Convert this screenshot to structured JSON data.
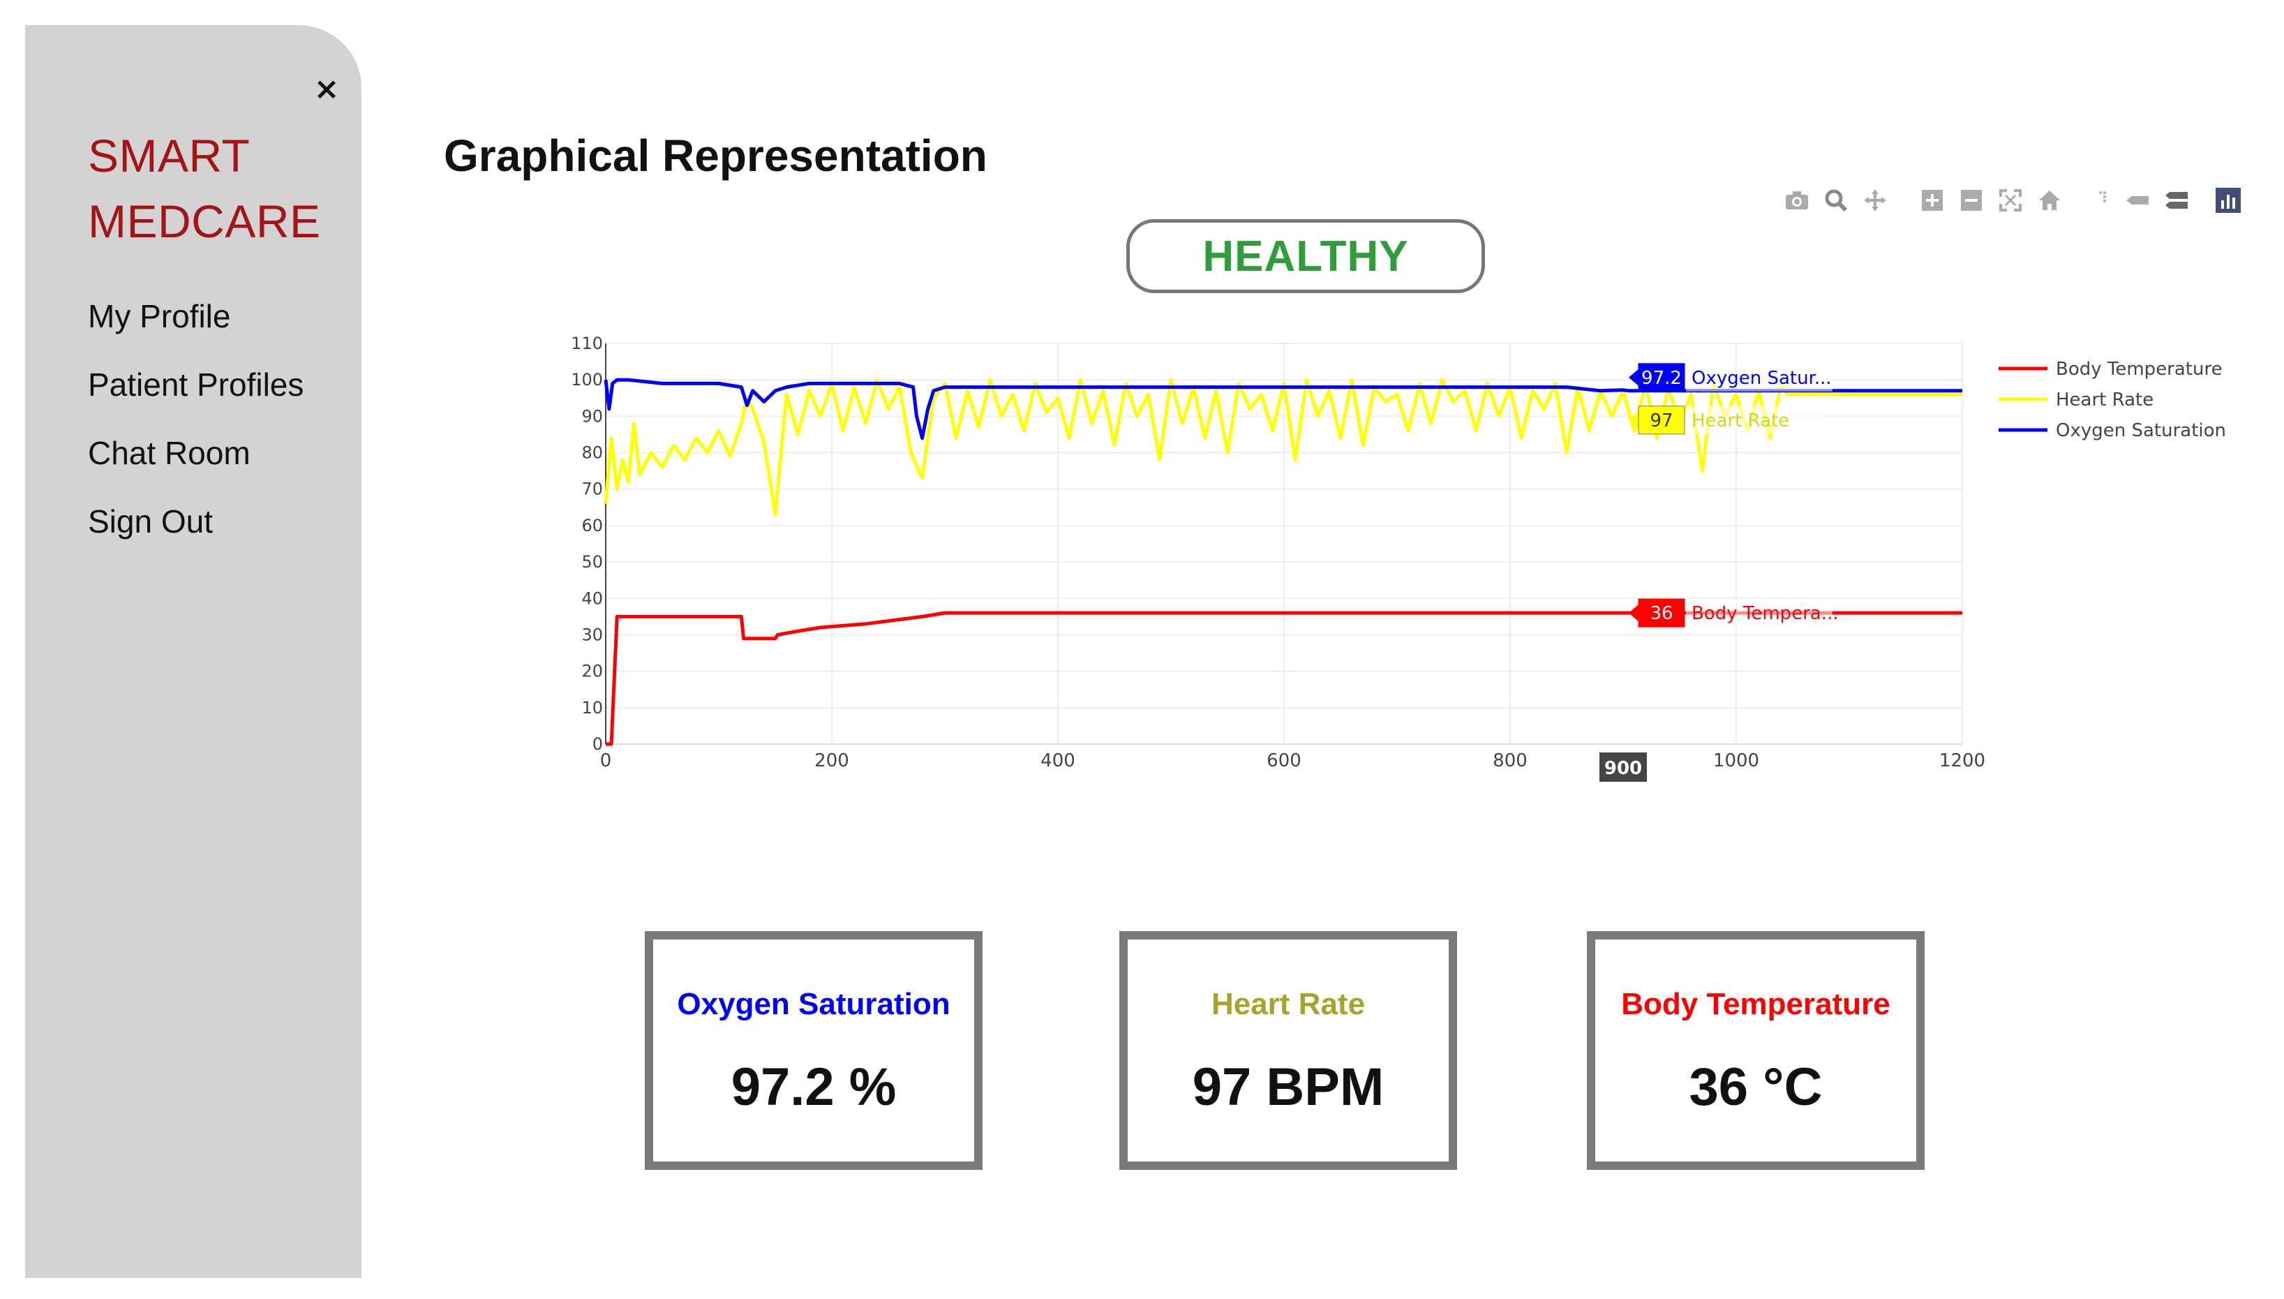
{
  "sidebar": {
    "close_label": "×",
    "brand_line1": "SMART",
    "brand_line2": "MEDCARE",
    "items": [
      {
        "label": "My Profile"
      },
      {
        "label": "Patient Profiles"
      },
      {
        "label": "Chat Room"
      },
      {
        "label": "Sign Out"
      }
    ]
  },
  "main": {
    "title": "Graphical Representation",
    "status": "HEALTHY"
  },
  "modebar": {
    "buttons": [
      "camera-icon",
      "zoom-icon",
      "pan-icon",
      "zoom-in-icon",
      "zoom-out-icon",
      "autoscale-icon",
      "reset-axes-icon",
      "spike-lines-icon",
      "hover-closest-icon",
      "hover-compare-icon",
      "plotly-logo-icon"
    ]
  },
  "colors": {
    "body_temperature": "#ff0000",
    "heart_rate": "#ffff00",
    "heart_rate_text": "#a4a52a",
    "oxygen_saturation": "#0000ff",
    "healthy": "#2e9e3a",
    "brand": "#a31515"
  },
  "chart_data": {
    "type": "line",
    "title": "",
    "xlabel": "",
    "ylabel": "",
    "xlim": [
      0,
      1200
    ],
    "ylim": [
      0,
      110
    ],
    "x_ticks": [
      "0",
      "200",
      "400",
      "600",
      "800",
      "1000",
      "1200"
    ],
    "y_ticks": [
      "0",
      "10",
      "20",
      "30",
      "40",
      "50",
      "60",
      "70",
      "80",
      "90",
      "100",
      "110"
    ],
    "grid": true,
    "legend_position": "top-right",
    "legend": [
      "Body Temperature",
      "Heart Rate",
      "Oxygen Saturation"
    ],
    "hover": {
      "x_label": "900",
      "labels": [
        {
          "series": "Oxygen Saturation",
          "value": "97.2",
          "name": "Oxygen Satur..."
        },
        {
          "series": "Heart Rate",
          "value": "97",
          "name": "Heart Rate"
        },
        {
          "series": "Body Temperature",
          "value": "36",
          "name": "Body Tempera..."
        }
      ]
    },
    "series": [
      {
        "name": "Body Temperature",
        "x": [
          0,
          5,
          10,
          120,
          122,
          150,
          152,
          170,
          190,
          230,
          280,
          300,
          400,
          600,
          900,
          1200
        ],
        "values": [
          0,
          0,
          35,
          35,
          29,
          29,
          30,
          31,
          32,
          33,
          35,
          36,
          36,
          36,
          36,
          36
        ]
      },
      {
        "name": "Heart Rate",
        "x": [
          0,
          5,
          10,
          15,
          20,
          25,
          30,
          40,
          50,
          60,
          70,
          80,
          90,
          100,
          110,
          120,
          125,
          130,
          140,
          150,
          160,
          170,
          180,
          190,
          200,
          210,
          220,
          230,
          240,
          250,
          260,
          270,
          280,
          290,
          300,
          310,
          320,
          330,
          340,
          350,
          360,
          370,
          380,
          390,
          400,
          410,
          420,
          430,
          440,
          450,
          460,
          470,
          480,
          490,
          500,
          510,
          520,
          530,
          540,
          550,
          560,
          570,
          580,
          590,
          600,
          610,
          620,
          630,
          640,
          650,
          660,
          670,
          680,
          690,
          700,
          710,
          720,
          730,
          740,
          750,
          760,
          770,
          780,
          790,
          800,
          810,
          820,
          830,
          840,
          850,
          860,
          870,
          880,
          890,
          900,
          910,
          920,
          930,
          940,
          950,
          960,
          970,
          980,
          990,
          1000,
          1010,
          1020,
          1030,
          1040,
          1045,
          1100,
          1200
        ],
        "values": [
          66,
          84,
          70,
          78,
          72,
          88,
          74,
          80,
          76,
          82,
          78,
          84,
          80,
          86,
          79,
          88,
          95,
          92,
          83,
          63,
          96,
          85,
          97,
          90,
          99,
          86,
          98,
          88,
          100,
          92,
          98,
          80,
          73,
          95,
          99,
          84,
          97,
          87,
          100,
          90,
          96,
          86,
          99,
          91,
          95,
          84,
          100,
          88,
          97,
          82,
          99,
          90,
          96,
          78,
          100,
          88,
          98,
          84,
          97,
          80,
          99,
          92,
          96,
          86,
          99,
          78,
          100,
          90,
          97,
          84,
          100,
          82,
          98,
          94,
          96,
          86,
          99,
          88,
          100,
          94,
          97,
          86,
          99,
          90,
          98,
          84,
          97,
          92,
          99,
          80,
          98,
          86,
          97,
          90,
          97,
          86,
          99,
          84,
          98,
          88,
          96,
          75,
          99,
          90,
          96,
          86,
          97,
          84,
          99,
          96,
          96,
          96
        ]
      },
      {
        "name": "Oxygen Saturation",
        "x": [
          0,
          3,
          6,
          10,
          20,
          50,
          100,
          120,
          125,
          130,
          140,
          150,
          160,
          180,
          200,
          260,
          272,
          275,
          280,
          285,
          290,
          300,
          320,
          400,
          500,
          600,
          700,
          800,
          850,
          880,
          900,
          905,
          950,
          1000,
          1040,
          1045,
          1100,
          1200
        ],
        "values": [
          100,
          92,
          99,
          100,
          100,
          99,
          99,
          98,
          93,
          97,
          94,
          97,
          98,
          99,
          99,
          99,
          98,
          90,
          84,
          92,
          97,
          98,
          98,
          98,
          98,
          98,
          98,
          98,
          98,
          97,
          97.2,
          97,
          97,
          97,
          97,
          97,
          97,
          97
        ]
      }
    ]
  },
  "cards": [
    {
      "title": "Oxygen Saturation",
      "value": "97.2 %"
    },
    {
      "title": "Heart Rate",
      "value": "97 BPM"
    },
    {
      "title": "Body Temperature",
      "value": "36 °C"
    }
  ]
}
